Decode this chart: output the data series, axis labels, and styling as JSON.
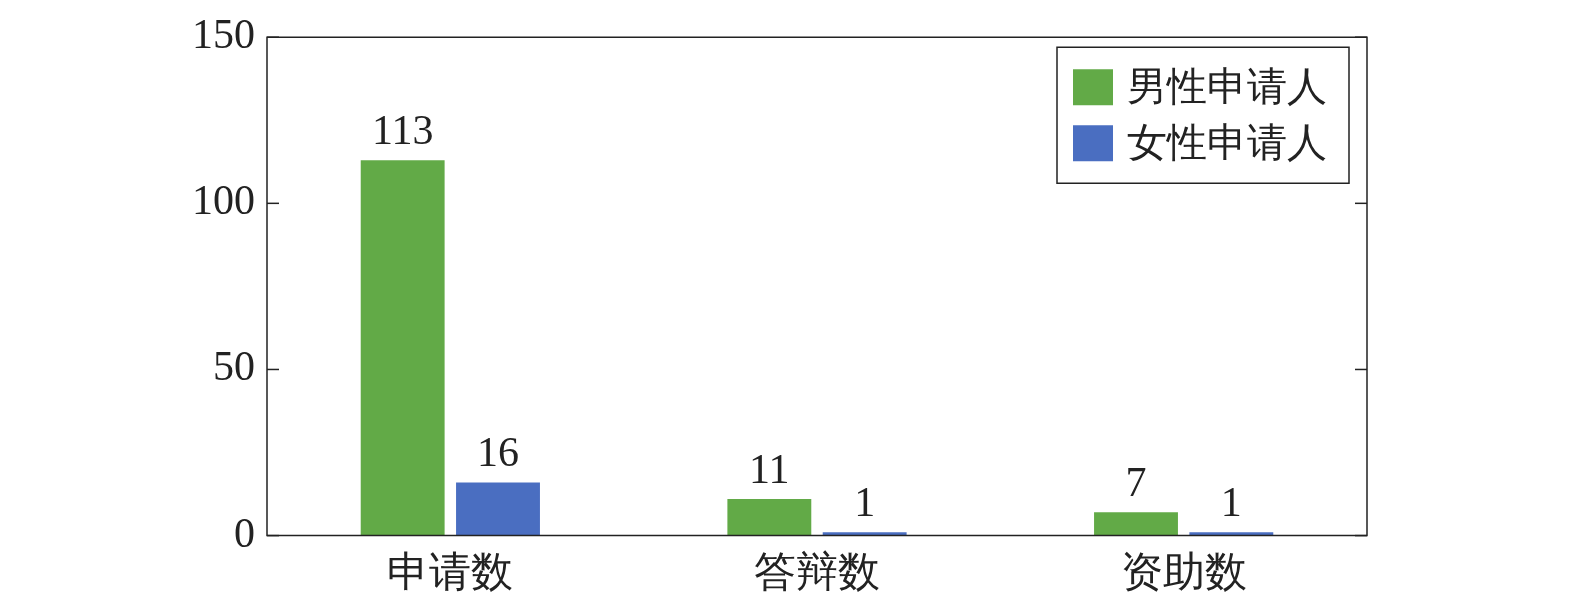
{
  "chart_data": {
    "type": "bar",
    "categories": [
      "申请数",
      "答辩数",
      "资助数"
    ],
    "series": [
      {
        "name": "男性申请人",
        "color": "#62aa47",
        "values": [
          113,
          11,
          7
        ]
      },
      {
        "name": "女性申请人",
        "color": "#4a6ec1",
        "values": [
          16,
          1,
          1
        ]
      }
    ],
    "ylim": [
      0,
      150
    ],
    "yticks": [
      0,
      50,
      100,
      150
    ],
    "grid": false,
    "legend": "top right",
    "data_labels": true
  }
}
